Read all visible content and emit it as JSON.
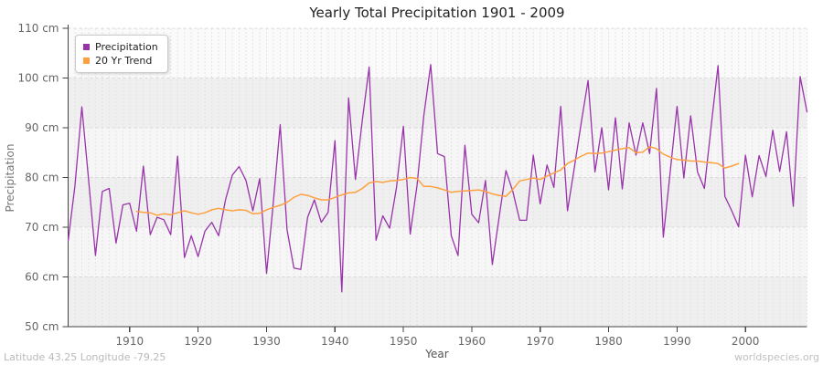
{
  "header": {
    "title": "Yearly Total Precipitation 1901 - 2009"
  },
  "legend": {
    "items": [
      {
        "label": "Precipitation",
        "color": "#9933aa"
      },
      {
        "label": "20 Yr Trend",
        "color": "#ffa040"
      }
    ]
  },
  "axes": {
    "y_label": "Precipitation",
    "x_label": "Year",
    "y_tick_labels": [
      "110 cm",
      "100 cm",
      "90 cm",
      "80 cm",
      "70 cm",
      "60 cm",
      "50 cm"
    ],
    "y_tick_values": [
      110,
      100,
      90,
      80,
      70,
      60,
      50
    ],
    "x_tick_values": [
      1910,
      1920,
      1930,
      1940,
      1950,
      1960,
      1970,
      1980,
      1990,
      2000
    ]
  },
  "footer": {
    "left": "Latitude 43.25 Longitude -79.25",
    "right": "worldspecies.org"
  },
  "colors": {
    "band_fills": [
      "#fafafa",
      "#efefef",
      "#f6f6f6",
      "#efefef",
      "#f6f6f6",
      "#efefef"
    ],
    "v_grid": "#e4e4e4",
    "h_grid": "#d8d8d8",
    "spine": "#444444",
    "tick_text": "#666666",
    "precipitation": "#9933aa",
    "trend": "#ffa040"
  },
  "chart_data": {
    "type": "line",
    "title": "Yearly Total Precipitation 1901 - 2009",
    "xlabel": "Year",
    "ylabel": "Precipitation",
    "x_range": [
      1901,
      2009
    ],
    "ylim": [
      50,
      110
    ],
    "grid": true,
    "legend_position": "top-left",
    "series": [
      {
        "name": "Precipitation",
        "x_start": 1901,
        "values": [
          67.2,
          78.4,
          94.2,
          79.5,
          64.3,
          77.2,
          77.8,
          66.8,
          74.5,
          74.8,
          69.2,
          82.3,
          68.5,
          72,
          71.5,
          68.5,
          84.3,
          63.9,
          68.3,
          64.1,
          69.2,
          71,
          68.3,
          75.5,
          80.5,
          82.2,
          79.4,
          73.3,
          79.8,
          60.7,
          75,
          90.6,
          69.5,
          61.8,
          61.5,
          72,
          75.5,
          71,
          73,
          87.4,
          57,
          96,
          79.6,
          91.5,
          102.2,
          67.4,
          72.3,
          69.8,
          78,
          90.3,
          68.6,
          78.5,
          92.5,
          102.7,
          84.8,
          84.2,
          68.3,
          64.3,
          86.5,
          72.6,
          70.9,
          79.4,
          62.5,
          72,
          81.4,
          77.2,
          71.4,
          71.4,
          84.5,
          74.7,
          82.5,
          78,
          94.3,
          73.3,
          82,
          91,
          99.5,
          81.1,
          90,
          77.5,
          92,
          77.7,
          91,
          84.5,
          91,
          84.8,
          97.9,
          68,
          81.1,
          94.3,
          79.9,
          92.4,
          81.1,
          77.8,
          90.5,
          102.5,
          76.2,
          73.3,
          70.1,
          84.5,
          76.1,
          84.4,
          80.2,
          89.5,
          81.2,
          89.2,
          74.2,
          100.3,
          93.2
        ]
      },
      {
        "name": "20 Yr Trend",
        "x_start": 1911,
        "values": [
          73.2,
          73,
          72.9,
          72.4,
          72.7,
          72.5,
          72.9,
          73.3,
          72.9,
          72.6,
          72.9,
          73.5,
          73.8,
          73.5,
          73.3,
          73.5,
          73.4,
          72.7,
          72.8,
          73.5,
          74,
          74.4,
          75,
          76,
          76.6,
          76.4,
          75.9,
          75.5,
          75.5,
          76,
          76.5,
          76.9,
          77,
          77.8,
          78.9,
          79.2,
          79,
          79.3,
          79.4,
          79.6,
          80,
          79.8,
          78.2,
          78.2,
          77.9,
          77.5,
          77,
          77.2,
          77.3,
          77.4,
          77.5,
          77.2,
          76.7,
          76.4,
          76.2,
          77.6,
          79.3,
          79.6,
          79.9,
          79.6,
          80.3,
          80.9,
          81.5,
          82.8,
          83.5,
          84.3,
          84.9,
          84.8,
          84.9,
          85.2,
          85.5,
          85.8,
          86,
          85,
          85.1,
          86.2,
          85.8,
          84.7,
          84.1,
          83.6,
          83.5,
          83.3,
          83.3,
          83.1,
          83,
          82.8,
          81.9,
          82.3,
          82.8
        ]
      }
    ]
  }
}
